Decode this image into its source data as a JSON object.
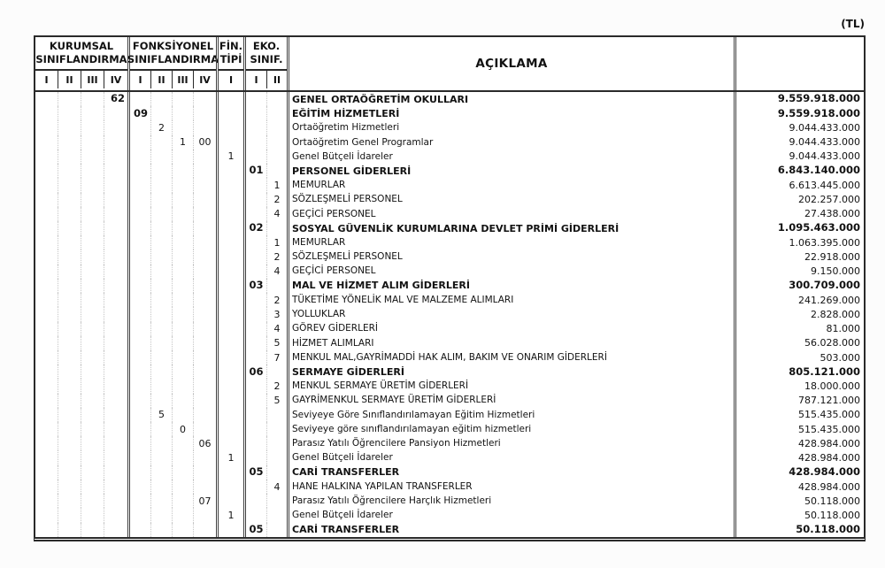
{
  "unit_label": "(TL)",
  "header": {
    "groups": [
      {
        "title_line1": "KURUMSAL",
        "title_line2": "SINIFLANDIRMA",
        "cols": [
          "I",
          "II",
          "III",
          "IV"
        ]
      },
      {
        "title_line1": "FONKSİYONEL",
        "title_line2": "SINIFLANDIRMA",
        "cols": [
          "I",
          "II",
          "III",
          "IV"
        ]
      },
      {
        "title_line1": "FİN.",
        "title_line2": "TİPİ",
        "cols": [
          "I"
        ]
      },
      {
        "title_line1": "EKO.",
        "title_line2": "SINIF.",
        "cols": [
          "I",
          "II"
        ]
      }
    ],
    "description_title": "AÇIKLAMA",
    "amount_title": ""
  },
  "rows": [
    {
      "k4": "62",
      "desc": "GENEL ORTAÖĞRETİM OKULLARI",
      "amount": "9.559.918.000",
      "bold": true
    },
    {
      "f1": "09",
      "desc": "EĞİTİM HİZMETLERİ",
      "amount": "9.559.918.000",
      "bold": true
    },
    {
      "f2": "2",
      "desc": "Ortaöğretim Hizmetleri",
      "amount": "9.044.433.000"
    },
    {
      "f3": "1",
      "f4": "00",
      "desc": "Ortaöğretim Genel Programlar",
      "amount": "9.044.433.000"
    },
    {
      "fin": "1",
      "desc": "Genel Bütçeli İdareler",
      "amount": "9.044.433.000"
    },
    {
      "e1": "01",
      "desc": "PERSONEL GİDERLERİ",
      "amount": "6.843.140.000",
      "bold": true
    },
    {
      "e2": "1",
      "desc": "MEMURLAR",
      "amount": "6.613.445.000"
    },
    {
      "e2": "2",
      "desc": "SÖZLEŞMELİ  PERSONEL",
      "amount": "202.257.000"
    },
    {
      "e2": "4",
      "desc": "GEÇİCİ PERSONEL",
      "amount": "27.438.000"
    },
    {
      "e1": "02",
      "desc": "SOSYAL GÜVENLİK KURUMLARINA DEVLET PRİMİ GİDERLERİ",
      "amount": "1.095.463.000",
      "bold": true
    },
    {
      "e2": "1",
      "desc": "MEMURLAR",
      "amount": "1.063.395.000"
    },
    {
      "e2": "2",
      "desc": "SÖZLEŞMELİ PERSONEL",
      "amount": "22.918.000"
    },
    {
      "e2": "4",
      "desc": "GEÇİCİ PERSONEL",
      "amount": "9.150.000"
    },
    {
      "e1": "03",
      "desc": "MAL VE HİZMET ALIM GİDERLERİ",
      "amount": "300.709.000",
      "bold": true
    },
    {
      "e2": "2",
      "desc": "TÜKETİME YÖNELİK MAL VE MALZEME ALIMLARI",
      "amount": "241.269.000"
    },
    {
      "e2": "3",
      "desc": "YOLLUKLAR",
      "amount": "2.828.000"
    },
    {
      "e2": "4",
      "desc": "GÖREV GİDERLERİ",
      "amount": "81.000"
    },
    {
      "e2": "5",
      "desc": "HİZMET ALIMLARI",
      "amount": "56.028.000"
    },
    {
      "e2": "7",
      "desc": "MENKUL MAL,GAYRİMADDİ HAK ALIM, BAKIM VE ONARIM GİDERLERİ",
      "amount": "503.000"
    },
    {
      "e1": "06",
      "desc": "SERMAYE GİDERLERİ",
      "amount": "805.121.000",
      "bold": true
    },
    {
      "e2": "2",
      "desc": "MENKUL SERMAYE ÜRETİM GİDERLERİ",
      "amount": "18.000.000"
    },
    {
      "e2": "5",
      "desc": "GAYRİMENKUL SERMAYE ÜRETİM GİDERLERİ",
      "amount": "787.121.000"
    },
    {
      "f2": "5",
      "desc": "Seviyeye Göre Sınıflandırılamayan Eğitim Hizmetleri",
      "amount": "515.435.000"
    },
    {
      "f3": "0",
      "desc": "Seviyeye göre sınıflandırılamayan eğitim hizmetleri",
      "amount": "515.435.000"
    },
    {
      "f4": "06",
      "desc": "Parasız Yatılı Öğrencilere Pansiyon Hizmetleri",
      "amount": "428.984.000"
    },
    {
      "fin": "1",
      "desc": "Genel Bütçeli İdareler",
      "amount": "428.984.000"
    },
    {
      "e1": "05",
      "desc": "CARİ TRANSFERLER",
      "amount": "428.984.000",
      "bold": true
    },
    {
      "e2": "4",
      "desc": "HANE HALKINA YAPILAN TRANSFERLER",
      "amount": "428.984.000"
    },
    {
      "f4": "07",
      "desc": "Parasız Yatılı Öğrencilere Harçlık Hizmetleri",
      "amount": "50.118.000"
    },
    {
      "fin": "1",
      "desc": "Genel Bütçeli İdareler",
      "amount": "50.118.000"
    },
    {
      "e1": "05",
      "desc": "CARİ TRANSFERLER",
      "amount": "50.118.000",
      "bold": true
    }
  ]
}
